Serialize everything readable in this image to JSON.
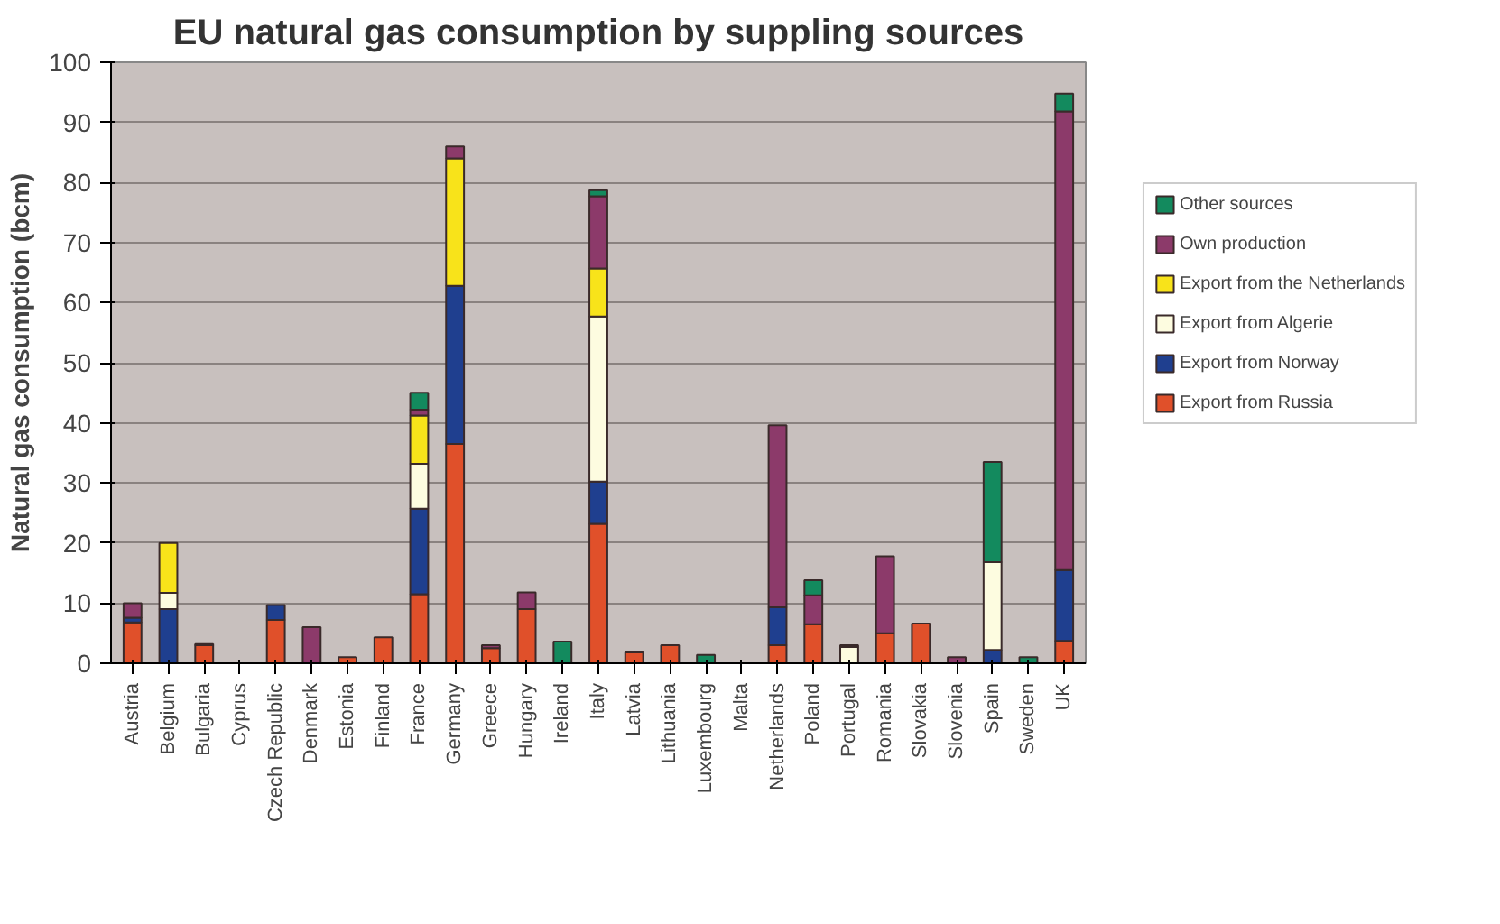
{
  "chart_data": {
    "type": "bar",
    "stacked": true,
    "title": "EU natural gas consumption by suppling sources",
    "ylabel": "Natural gas consumption (bcm)",
    "categories": [
      "Austria",
      "Belgium",
      "Bulgaria",
      "Cyprus",
      "Czech Republic",
      "Denmark",
      "Estonia",
      "Finland",
      "France",
      "Germany",
      "Greece",
      "Hungary",
      "Ireland",
      "Italy",
      "Latvia",
      "Lithuania",
      "Luxembourg",
      "Malta",
      "Netherlands",
      "Poland",
      "Portugal",
      "Romania",
      "Slovakia",
      "Slovenia",
      "Spain",
      "Sweden",
      "UK"
    ],
    "series": [
      {
        "name": "Export from Russia",
        "color": "#e0502a",
        "values": [
          6.8,
          null,
          3,
          null,
          7.2,
          null,
          1,
          4.3,
          11.5,
          36.5,
          2.5,
          9,
          null,
          23.2,
          1.8,
          3,
          null,
          null,
          3,
          6.5,
          null,
          5,
          6.6,
          null,
          null,
          null,
          3.7
        ]
      },
      {
        "name": "Export from Norway",
        "color": "#1f3f8f",
        "values": [
          0.8,
          9,
          null,
          null,
          2.5,
          null,
          null,
          null,
          14.2,
          26.3,
          null,
          null,
          null,
          7,
          null,
          null,
          null,
          null,
          6.3,
          null,
          null,
          null,
          null,
          null,
          2.2,
          null,
          11.8
        ]
      },
      {
        "name": "Export from Algerie",
        "color": "#fdfce0",
        "values": [
          null,
          2.7,
          null,
          null,
          null,
          null,
          null,
          null,
          7.5,
          null,
          null,
          null,
          null,
          27.5,
          null,
          null,
          null,
          null,
          null,
          null,
          2.7,
          null,
          null,
          null,
          14.6,
          null,
          null
        ]
      },
      {
        "name": "Export from the Netherlands",
        "color": "#f8e31a",
        "values": [
          null,
          8.3,
          null,
          null,
          null,
          null,
          null,
          null,
          8,
          21.2,
          null,
          null,
          null,
          8,
          null,
          null,
          null,
          null,
          null,
          null,
          null,
          null,
          null,
          null,
          null,
          null,
          null
        ]
      },
      {
        "name": "Own production",
        "color": "#8c3a6a",
        "values": [
          2.4,
          null,
          0.2,
          null,
          null,
          6,
          null,
          null,
          1,
          2,
          0.5,
          2.8,
          null,
          12,
          null,
          null,
          null,
          null,
          30.3,
          4.8,
          0.3,
          12.8,
          null,
          1,
          null,
          null,
          76.3
        ]
      },
      {
        "name": "Other sources",
        "color": "#138a5e",
        "values": [
          null,
          null,
          null,
          null,
          null,
          null,
          null,
          null,
          2.8,
          null,
          null,
          null,
          3.6,
          1,
          null,
          null,
          1.4,
          null,
          null,
          2.5,
          null,
          null,
          null,
          null,
          16.7,
          1,
          3
        ]
      }
    ],
    "ylim": [
      0,
      100
    ],
    "yticks": [
      0,
      10,
      20,
      30,
      40,
      50,
      60,
      70,
      80,
      90,
      100
    ],
    "grid": "y",
    "legend": "right"
  }
}
